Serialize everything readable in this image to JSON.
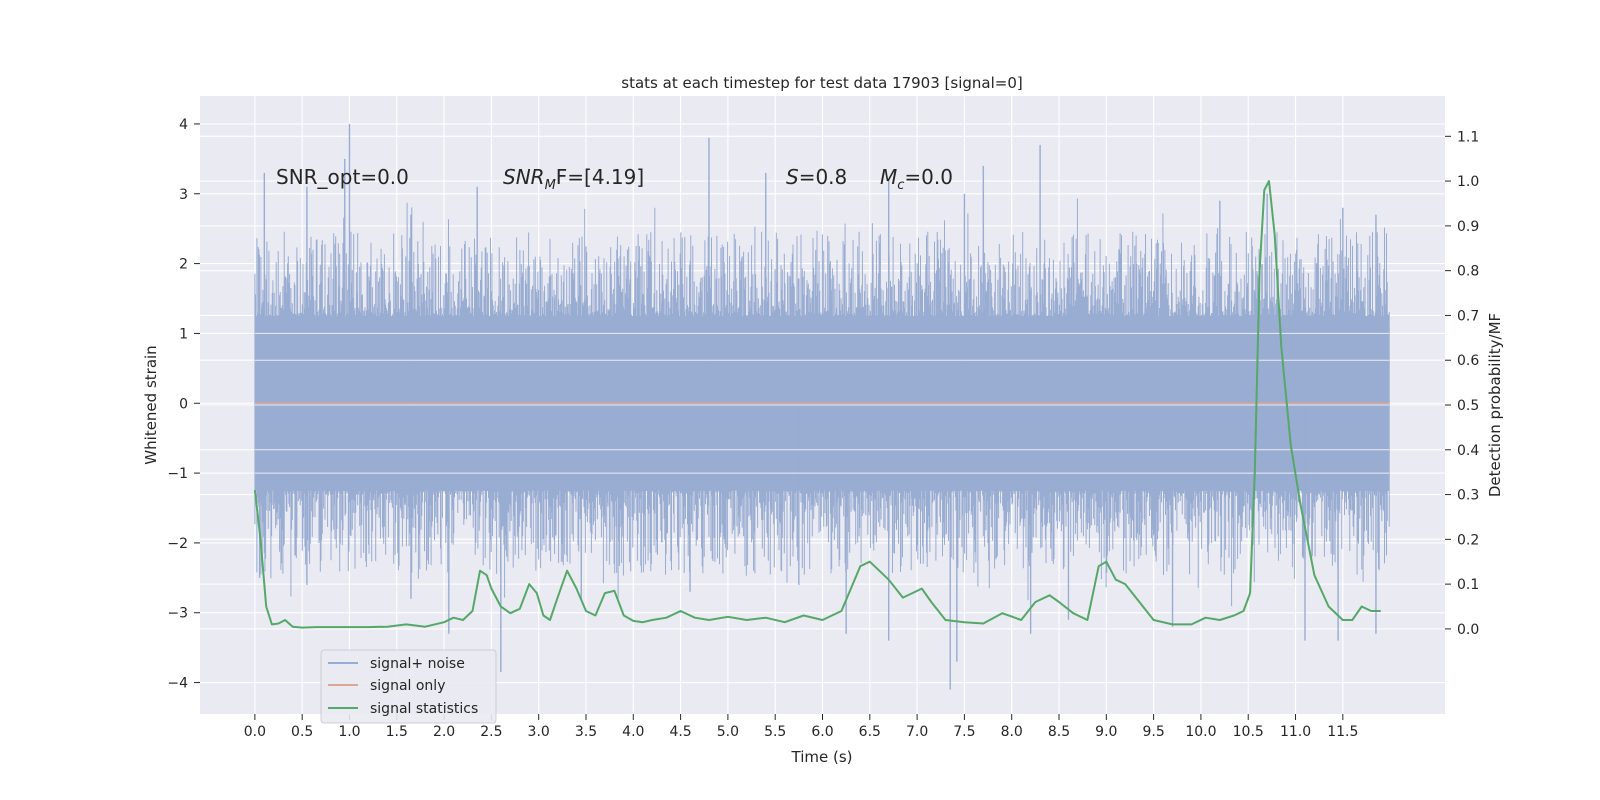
{
  "chart_data": {
    "type": "line",
    "title": "stats at each timestep for test data 17903 [signal=0]",
    "xlabel": "Time (s)",
    "ylabel": "Whitened strain",
    "y2label": "Detection probability/MF",
    "xlim": [
      -0.58,
      12.58
    ],
    "ylim": [
      -4.45,
      4.4
    ],
    "y2lim": [
      -0.19,
      1.19
    ],
    "x_ticks": [
      0.0,
      0.5,
      1.0,
      1.5,
      2.0,
      2.5,
      3.0,
      3.5,
      4.0,
      4.5,
      5.0,
      5.5,
      6.0,
      6.5,
      7.0,
      7.5,
      8.0,
      8.5,
      9.0,
      9.5,
      10.0,
      10.5,
      11.0,
      11.5
    ],
    "x_tick_labels": [
      "0.0",
      "0.5",
      "1.0",
      "1.5",
      "2.0",
      "2.5",
      "3.0",
      "3.5",
      "4.0",
      "4.5",
      "5.0",
      "5.5",
      "6.0",
      "6.5",
      "7.0",
      "7.5",
      "8.0",
      "8.5",
      "9.0",
      "9.5",
      "10.0",
      "10.5",
      "11.0",
      "11.5"
    ],
    "y_ticks": [
      -4,
      -3,
      -2,
      -1,
      0,
      1,
      2,
      3,
      4
    ],
    "y_tick_labels": [
      "−4",
      "−3",
      "−2",
      "−1",
      "0",
      "1",
      "2",
      "3",
      "4"
    ],
    "y2_ticks": [
      0.0,
      0.1,
      0.2,
      0.3,
      0.4,
      0.5,
      0.6,
      0.7,
      0.8,
      0.9,
      1.0,
      1.1
    ],
    "y2_tick_labels": [
      "0.0",
      "0.1",
      "0.2",
      "0.3",
      "0.4",
      "0.5",
      "0.6",
      "0.7",
      "0.8",
      "0.9",
      "1.0",
      "1.1"
    ],
    "grid": true,
    "legend_position": "lower-left",
    "annotations": {
      "snr_opt": "SNR_opt=0.0",
      "snr_mf_main": "SNR",
      "snr_mf_sub": "M",
      "snr_mf_rest": "F=[4.19]",
      "s_main": "S",
      "s_rest": "=0.8",
      "mc_main": "M",
      "mc_sub": "c",
      "mc_rest": "=0.0"
    },
    "series": [
      {
        "name": "signal+ noise",
        "color": "#99acd1",
        "style": "dense noise trace, approx. bounded by +/-1.2 core with spikes to +/-4",
        "x_range": [
          0.0,
          11.99
        ],
        "core_amplitude": 1.25,
        "peaks_up": [
          [
            0.1,
            3.3
          ],
          [
            0.55,
            3.1
          ],
          [
            0.95,
            3.5
          ],
          [
            1.0,
            4.0
          ],
          [
            1.65,
            2.7
          ],
          [
            2.35,
            3.1
          ],
          [
            4.8,
            3.8
          ],
          [
            5.4,
            3.3
          ],
          [
            6.7,
            3.2
          ],
          [
            7.5,
            3.0
          ],
          [
            7.7,
            3.4
          ],
          [
            8.3,
            3.7
          ],
          [
            10.2,
            2.9
          ],
          [
            10.7,
            3.0
          ],
          [
            11.5,
            2.8
          ],
          [
            11.85,
            2.7
          ]
        ],
        "peaks_down": [
          [
            0.05,
            -2.5
          ],
          [
            0.55,
            -2.6
          ],
          [
            1.65,
            -2.8
          ],
          [
            2.05,
            -3.3
          ],
          [
            2.6,
            -3.85
          ],
          [
            3.45,
            -2.8
          ],
          [
            4.6,
            -2.7
          ],
          [
            5.75,
            -2.6
          ],
          [
            6.25,
            -3.3
          ],
          [
            6.7,
            -3.4
          ],
          [
            7.35,
            -4.1
          ],
          [
            7.42,
            -3.7
          ],
          [
            8.2,
            -3.3
          ],
          [
            8.6,
            -3.1
          ],
          [
            9.7,
            -3.2
          ],
          [
            11.1,
            -3.4
          ],
          [
            11.45,
            -3.4
          ],
          [
            11.85,
            -3.3
          ]
        ]
      },
      {
        "name": "signal only",
        "color": "#dda794",
        "x": [
          0.0,
          11.99
        ],
        "y": [
          0.0,
          0.0
        ]
      },
      {
        "name": "signal statistics",
        "color": "#55a868",
        "axis": "right",
        "x": [
          0.0,
          0.06,
          0.12,
          0.18,
          0.25,
          0.32,
          0.4,
          0.5,
          0.65,
          0.8,
          1.0,
          1.2,
          1.4,
          1.6,
          1.8,
          2.0,
          2.1,
          2.2,
          2.3,
          2.38,
          2.45,
          2.5,
          2.6,
          2.7,
          2.8,
          2.9,
          2.98,
          3.05,
          3.12,
          3.2,
          3.3,
          3.4,
          3.5,
          3.6,
          3.7,
          3.8,
          3.9,
          4.0,
          4.1,
          4.2,
          4.35,
          4.5,
          4.65,
          4.8,
          5.0,
          5.2,
          5.4,
          5.6,
          5.8,
          6.0,
          6.2,
          6.3,
          6.4,
          6.5,
          6.6,
          6.7,
          6.85,
          6.95,
          7.05,
          7.15,
          7.3,
          7.5,
          7.7,
          7.9,
          8.1,
          8.25,
          8.4,
          8.5,
          8.65,
          8.8,
          8.92,
          9.0,
          9.1,
          9.2,
          9.35,
          9.5,
          9.7,
          9.9,
          10.05,
          10.2,
          10.35,
          10.45,
          10.52,
          10.57,
          10.62,
          10.67,
          10.72,
          10.78,
          10.85,
          10.95,
          11.05,
          11.2,
          11.35,
          11.5,
          11.6,
          11.7,
          11.8,
          11.9
        ],
        "y": [
          0.31,
          0.2,
          0.05,
          0.01,
          0.012,
          0.02,
          0.005,
          0.003,
          0.004,
          0.004,
          0.004,
          0.004,
          0.005,
          0.01,
          0.005,
          0.015,
          0.025,
          0.02,
          0.04,
          0.13,
          0.12,
          0.09,
          0.05,
          0.035,
          0.045,
          0.1,
          0.08,
          0.03,
          0.02,
          0.07,
          0.13,
          0.09,
          0.04,
          0.03,
          0.08,
          0.085,
          0.03,
          0.018,
          0.015,
          0.02,
          0.025,
          0.04,
          0.025,
          0.02,
          0.027,
          0.02,
          0.025,
          0.015,
          0.03,
          0.02,
          0.04,
          0.09,
          0.14,
          0.15,
          0.13,
          0.11,
          0.07,
          0.08,
          0.09,
          0.06,
          0.02,
          0.015,
          0.012,
          0.035,
          0.02,
          0.06,
          0.075,
          0.06,
          0.035,
          0.02,
          0.14,
          0.15,
          0.11,
          0.1,
          0.06,
          0.02,
          0.01,
          0.01,
          0.025,
          0.02,
          0.03,
          0.04,
          0.08,
          0.35,
          0.8,
          0.98,
          1.0,
          0.88,
          0.63,
          0.41,
          0.28,
          0.12,
          0.05,
          0.02,
          0.02,
          0.05,
          0.04,
          0.04
        ]
      }
    ]
  }
}
